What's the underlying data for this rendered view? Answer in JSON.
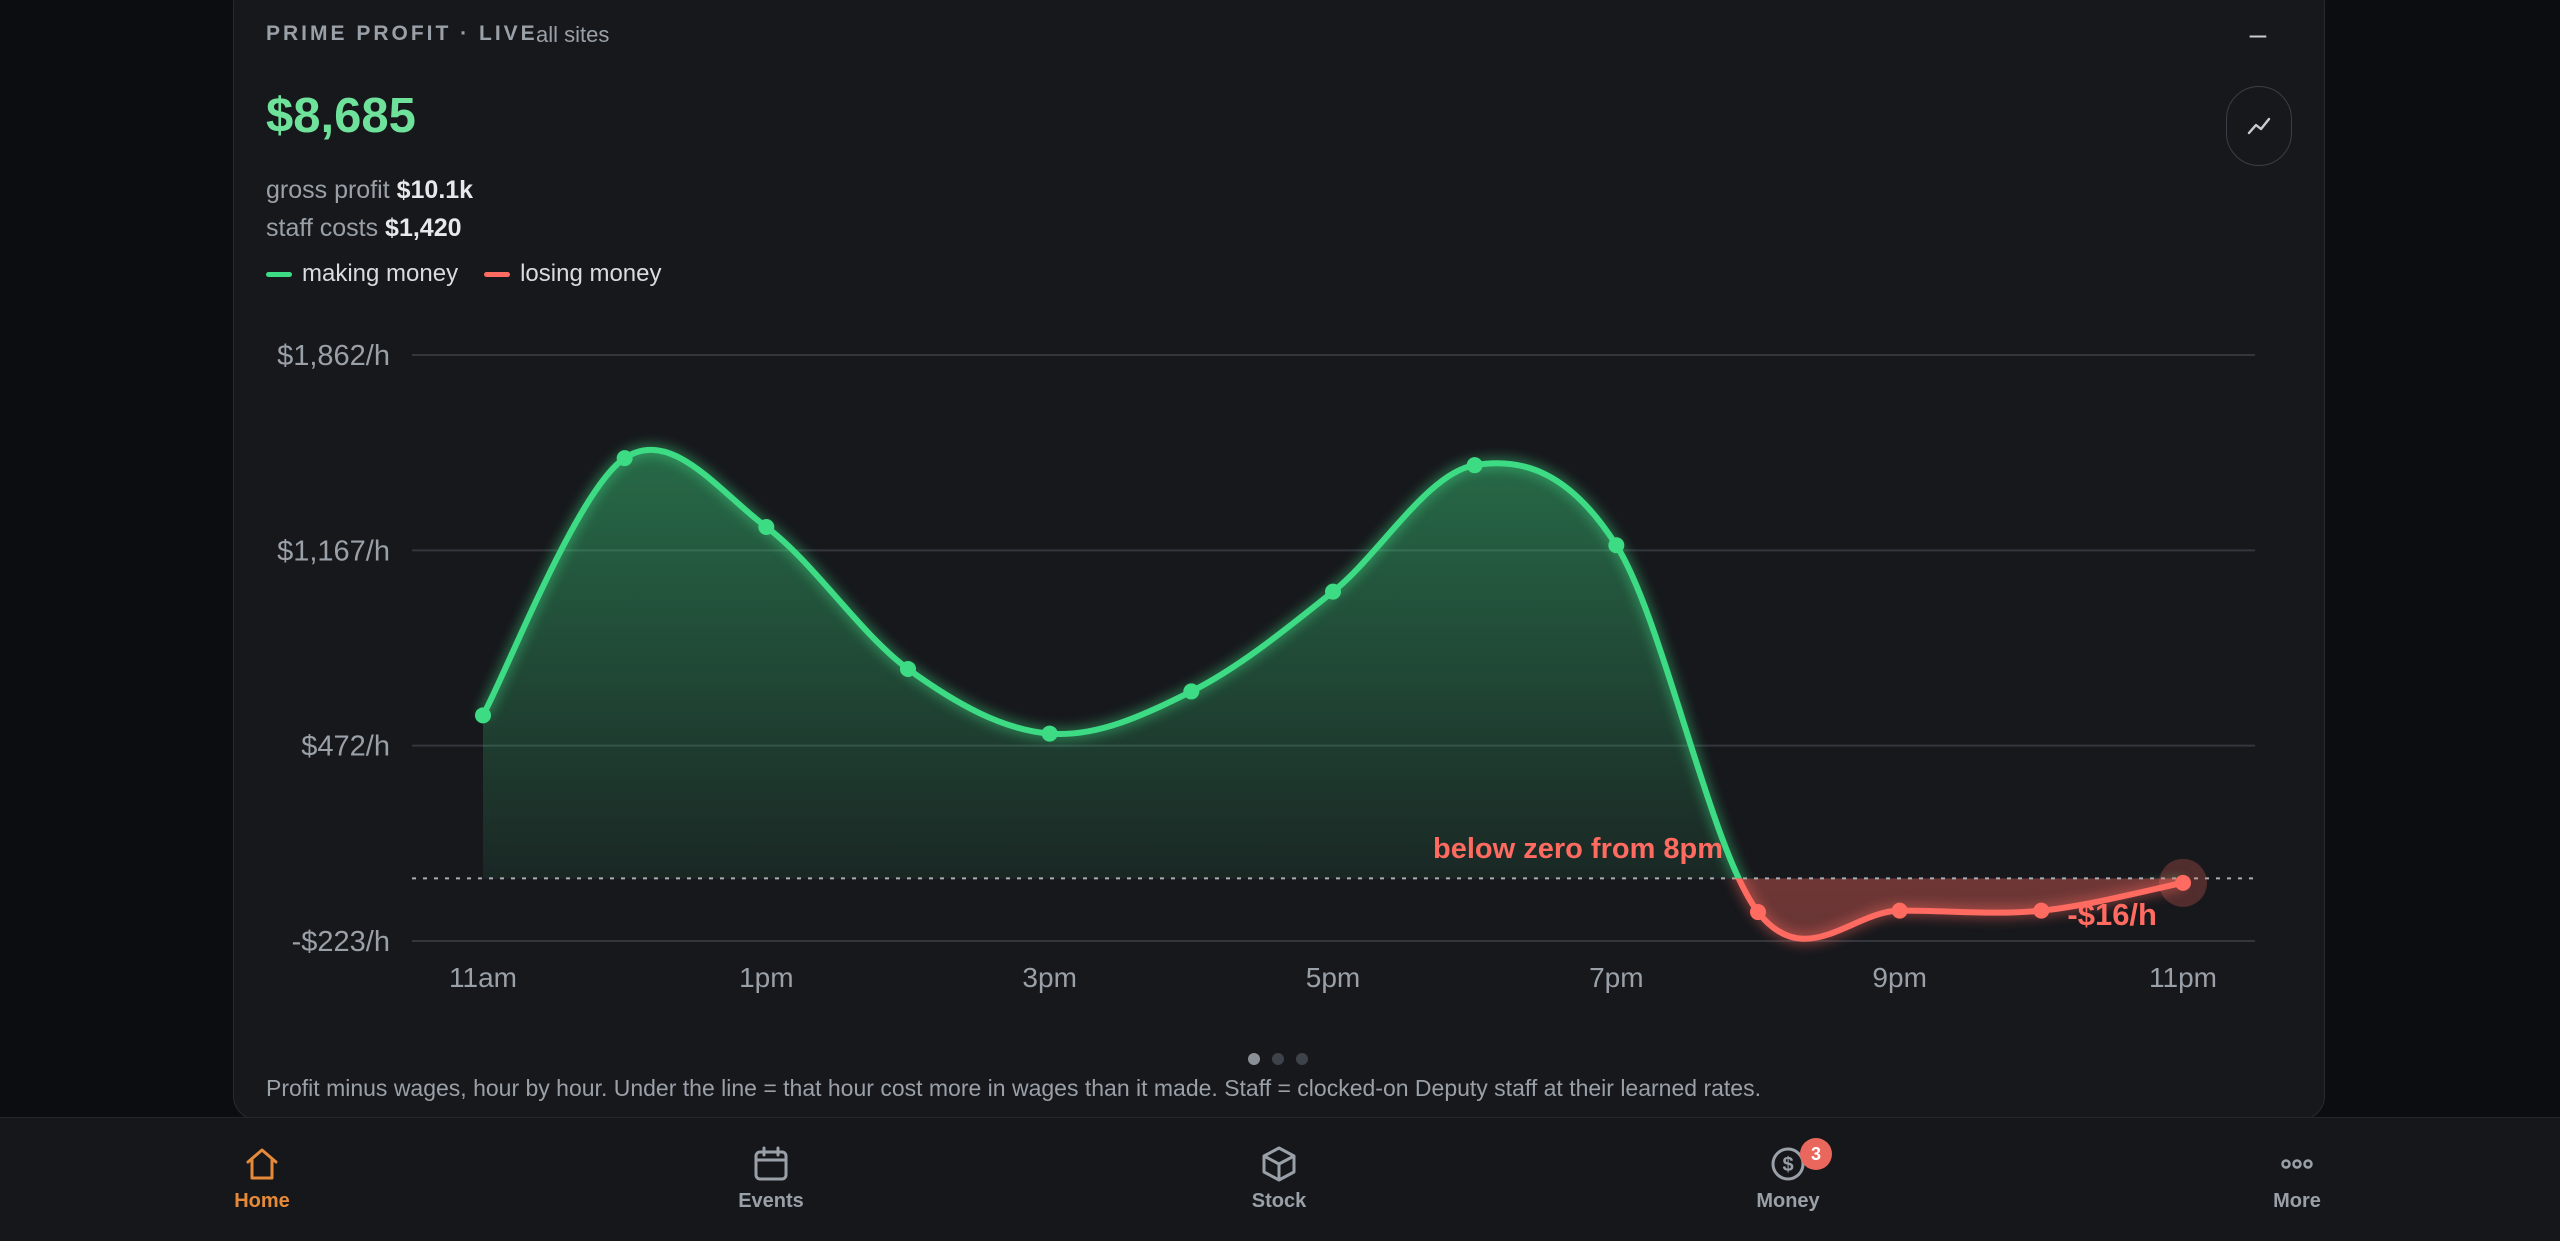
{
  "card": {
    "title": "PRIME PROFIT · LIVE",
    "scope": "all sites",
    "collapse_label": "–",
    "chart_toggle_icon": "line-chart-icon",
    "headline_value": "$8,685",
    "gross_profit_label": "gross profit",
    "gross_profit_value": "$10.1k",
    "staff_costs_label": "staff costs",
    "staff_costs_value": "$1,420",
    "legend": [
      {
        "label": "making money",
        "color": "#3ddc84"
      },
      {
        "label": "losing money",
        "color": "#ff6b61"
      }
    ],
    "footnote": "Profit minus wages, hour by hour. Under the line = that hour cost more in wages than it made. Staff = clocked-on Deputy staff at their learned rates.",
    "page_dots": {
      "count": 3,
      "active": 0
    }
  },
  "chart_data": {
    "type": "area",
    "x": [
      "11am",
      "12pm",
      "1pm",
      "2pm",
      "3pm",
      "4pm",
      "5pm",
      "6pm",
      "7pm",
      "8pm",
      "9pm",
      "10pm",
      "11pm"
    ],
    "xtick_labels": [
      "11am",
      "1pm",
      "3pm",
      "5pm",
      "7pm",
      "9pm",
      "11pm"
    ],
    "values": [
      580,
      1495,
      1250,
      745,
      515,
      665,
      1020,
      1470,
      1185,
      -120,
      -115,
      -115,
      -16
    ],
    "ylim": [
      -223,
      1862
    ],
    "ytick_values": [
      -223,
      472,
      1167,
      1862
    ],
    "ytick_labels": [
      "-$223/h",
      "$472/h",
      "$1,167/h",
      "$1,862/h"
    ],
    "zero_line": true,
    "positive_color": "#3ddc84",
    "negative_color": "#ff6b61",
    "annotation": "below zero from 8pm",
    "last_value_label": "-$16/h"
  },
  "nav": [
    {
      "label": "Home",
      "icon": "home-icon",
      "active": true
    },
    {
      "label": "Events",
      "icon": "calendar-icon",
      "active": false
    },
    {
      "label": "Stock",
      "icon": "box-icon",
      "active": false
    },
    {
      "label": "Money",
      "icon": "dollar-icon",
      "active": false,
      "badge": "3"
    },
    {
      "label": "More",
      "icon": "more-dots-icon",
      "active": false
    }
  ]
}
